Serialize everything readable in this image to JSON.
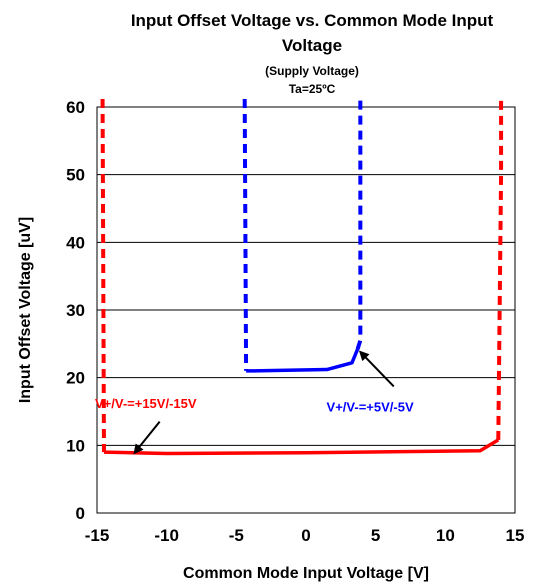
{
  "chart_data": {
    "type": "line",
    "title": "Input Offset Voltage vs. Common Mode Input",
    "title_line2": "Voltage",
    "subtitle": "(Supply Voltage)",
    "subtitle2": "Ta=25ºC",
    "xlabel": "Common Mode Input Voltage [V]",
    "ylabel": "Input Offset Voltage [uV]",
    "xlim": [
      -15,
      15
    ],
    "ylim": [
      0,
      60
    ],
    "xticks": [
      "-15",
      "-10",
      "-5",
      "0",
      "5",
      "10",
      "15"
    ],
    "yticks": [
      "0",
      "10",
      "20",
      "30",
      "40",
      "50",
      "60"
    ],
    "grid": "horizontal",
    "series": [
      {
        "name": "V+/V-=+15V/-15V",
        "color": "#ff0000",
        "segments": [
          {
            "style": "dashed",
            "points": [
              [
                -14.6,
                62
              ],
              [
                -14.5,
                9
              ]
            ]
          },
          {
            "style": "solid",
            "points": [
              [
                -14.5,
                9
              ],
              [
                -10,
                8.8
              ],
              [
                0,
                8.9
              ],
              [
                12.5,
                9.2
              ],
              [
                13.8,
                10.8
              ]
            ]
          },
          {
            "style": "dashed",
            "points": [
              [
                13.8,
                10.8
              ],
              [
                14,
                50
              ],
              [
                14,
                62
              ]
            ]
          }
        ]
      },
      {
        "name": "V+/V-=+5V/-5V",
        "color": "#0000ff",
        "segments": [
          {
            "style": "dashed",
            "points": [
              [
                -4.4,
                62
              ],
              [
                -4.3,
                21
              ]
            ]
          },
          {
            "style": "solid",
            "points": [
              [
                -4.3,
                21
              ],
              [
                -3.8,
                21
              ],
              [
                1.5,
                21.2
              ],
              [
                3.3,
                22.2
              ],
              [
                3.7,
                24.2
              ]
            ]
          },
          {
            "style": "dashed",
            "points": [
              [
                3.7,
                24.2
              ],
              [
                3.9,
                25.5
              ],
              [
                3.9,
                62
              ]
            ]
          }
        ]
      }
    ],
    "annotations": [
      {
        "text": "V+/V-=+15V/-15V",
        "color": "#ff0000",
        "x": -11.5,
        "y": 15.5,
        "arrow_to": [
          -12.3,
          8.9
        ],
        "arrow_from": [
          -10.5,
          13.5
        ]
      },
      {
        "text": "V+/V-=+5V/-5V",
        "color": "#0000ff",
        "x": 4.6,
        "y": 15,
        "arrow_to": [
          3.9,
          23.8
        ],
        "arrow_from": [
          6.3,
          18.7
        ]
      }
    ]
  }
}
